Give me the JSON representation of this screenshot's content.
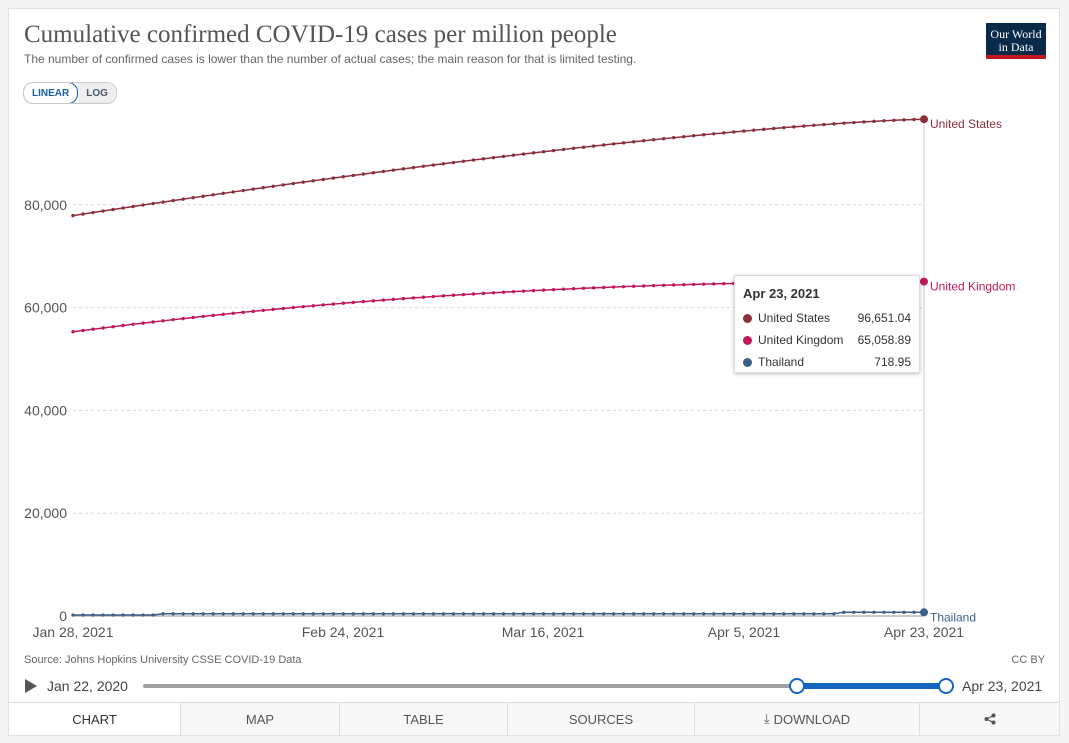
{
  "header": {
    "title": "Cumulative confirmed COVID-19 cases per million people",
    "subtitle": "The number of confirmed cases is lower than the number of actual cases; the main reason for that is limited testing.",
    "logo_line1": "Our World",
    "logo_line2": "in Data"
  },
  "scale_toggle": {
    "linear": "LINEAR",
    "log": "LOG",
    "active": "LINEAR"
  },
  "chart_data": {
    "type": "line",
    "title": "Cumulative confirmed COVID-19 cases per million people",
    "xlabel": "",
    "ylabel": "",
    "x_ticks": [
      "Jan 28, 2021",
      "Feb 24, 2021",
      "Mar 16, 2021",
      "Apr 5, 2021",
      "Apr 23, 2021"
    ],
    "x_range": [
      "Jan 28, 2021",
      "Apr 23, 2021"
    ],
    "y_ticks": [
      0,
      20000,
      40000,
      60000,
      80000
    ],
    "y_tick_labels": [
      "0",
      "20,000",
      "40,000",
      "60,000",
      "80,000"
    ],
    "ylim": [
      0,
      100000
    ],
    "grid": "horizontal dashed",
    "legend": "line end labels (right)",
    "series": [
      {
        "name": "United States",
        "color": "#8b2f3a",
        "start": 77900,
        "end": 96651.04,
        "curve": "concave"
      },
      {
        "name": "United Kingdom",
        "color": "#c2185b",
        "start": 55300,
        "end": 65058.89,
        "curve": "strong-concave"
      },
      {
        "name": "Thailand",
        "color": "#3e5f8a",
        "start": 190,
        "end": 718.95,
        "curve": "step"
      }
    ]
  },
  "tooltip": {
    "date": "Apr 23, 2021",
    "rows": [
      {
        "name": "United States",
        "value": "96,651.04",
        "color": "#8b2f3a"
      },
      {
        "name": "United Kingdom",
        "value": "65,058.89",
        "color": "#c2185b"
      },
      {
        "name": "Thailand",
        "value": "718.95",
        "color": "#3e5f8a"
      }
    ]
  },
  "footer": {
    "source": "Source: Johns Hopkins University CSSE COVID-19 Data",
    "license": "CC BY"
  },
  "timeline": {
    "start_label": "Jan 22, 2020",
    "end_label": "Apr 23, 2021",
    "range_start_label": "Jan 28, 2021",
    "range_end_label": "Apr 23, 2021"
  },
  "tabs": {
    "chart": "CHART",
    "map": "MAP",
    "table": "TABLE",
    "sources": "SOURCES",
    "download": "DOWNLOAD",
    "share": "share"
  }
}
